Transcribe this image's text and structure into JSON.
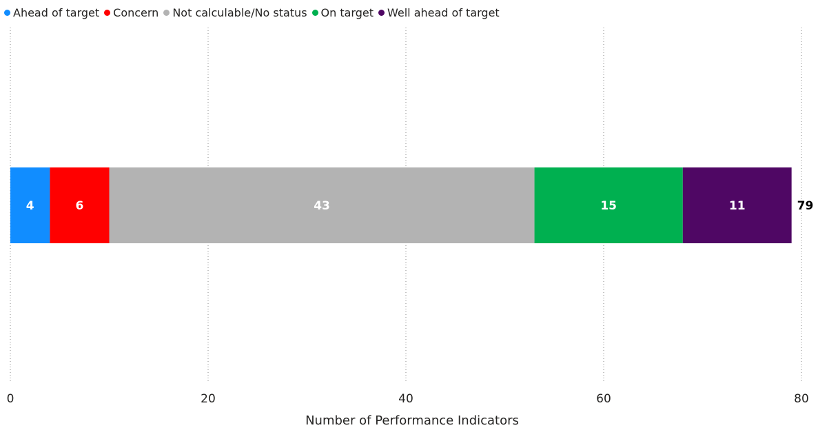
{
  "chart_data": {
    "type": "bar",
    "orientation": "horizontal",
    "stacked": true,
    "series": [
      {
        "name": "Ahead of target",
        "values": [
          4
        ],
        "color": "#118DFF"
      },
      {
        "name": "Concern",
        "values": [
          6
        ],
        "color": "#FF0000"
      },
      {
        "name": "Not calculable/No status",
        "values": [
          43
        ],
        "color": "#B3B3B3"
      },
      {
        "name": "On target",
        "values": [
          15
        ],
        "color": "#00B050"
      },
      {
        "name": "Well ahead of target",
        "values": [
          11
        ],
        "color": "#4F0764"
      }
    ],
    "total": 79,
    "xlabel": "Number of Performance Indicators",
    "ylabel": "",
    "xlim": [
      0,
      80
    ],
    "xticks": [
      0,
      20,
      40,
      60,
      80
    ],
    "grid": "vertical-dotted",
    "legend_position": "top-left"
  }
}
